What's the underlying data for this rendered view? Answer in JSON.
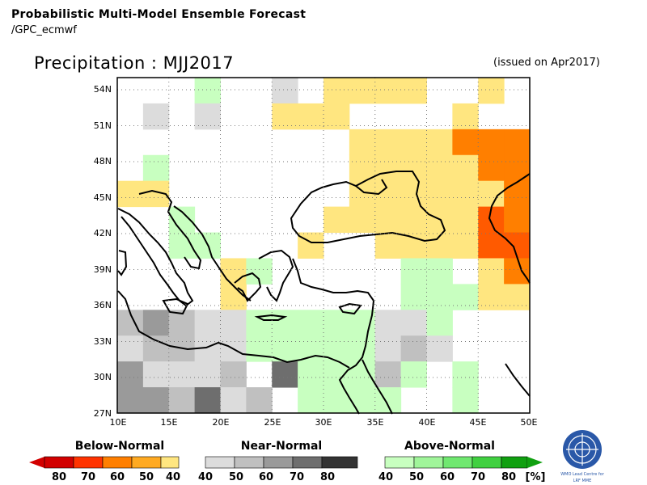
{
  "header": {
    "title": "Probabilistic Multi-Model Ensemble Forecast",
    "subtitle": "/GPC_ecmwf",
    "map_title": "Precipitation : MJJ2017",
    "issued": "(issued on Apr2017)"
  },
  "axes": {
    "lat_labels": [
      "54N",
      "51N",
      "48N",
      "45N",
      "42N",
      "39N",
      "36N",
      "33N",
      "30N",
      "27N"
    ],
    "lon_labels": [
      "10E",
      "15E",
      "20E",
      "25E",
      "30E",
      "35E",
      "40E",
      "45E",
      "50E"
    ]
  },
  "legend": {
    "below": {
      "title": "Below-Normal",
      "ticks": [
        "80",
        "70",
        "60",
        "50",
        "40"
      ],
      "colors": [
        "#d20000",
        "#ff3300",
        "#ff7f00",
        "#ffaa22",
        "#ffe680"
      ]
    },
    "near": {
      "title": "Near-Normal",
      "ticks": [
        "40",
        "50",
        "60",
        "70",
        "80"
      ],
      "colors": [
        "#dcdcdc",
        "#c0c0c0",
        "#9a9a9a",
        "#6e6e6e",
        "#333333"
      ]
    },
    "above": {
      "title": "Above-Normal",
      "ticks": [
        "40",
        "50",
        "60",
        "70",
        "80"
      ],
      "unit": "[%]",
      "colors": [
        "#c8ffc0",
        "#a0f59a",
        "#70e870",
        "#40d040",
        "#10a010"
      ]
    }
  },
  "logo": {
    "line1": "WMO Lead Centre for",
    "line2": "LRF MME"
  }
}
